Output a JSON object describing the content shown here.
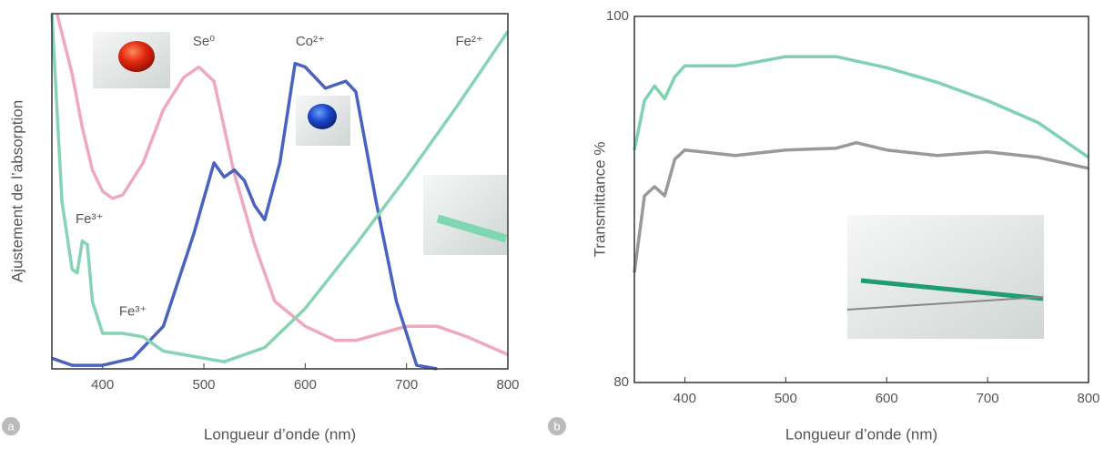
{
  "chart_data": [
    {
      "type": "line",
      "panel_label": "a",
      "xlabel": "Longueur d’onde (nm)",
      "ylabel": "Ajustement de l’absorption",
      "xlim": [
        350,
        800
      ],
      "xticks": [
        400,
        500,
        600,
        700,
        800
      ],
      "ylim": [
        0,
        100
      ],
      "series": [
        {
          "color": "#f0a8bd",
          "x": [
            355,
            370,
            380,
            390,
            400,
            410,
            420,
            440,
            460,
            480,
            495,
            510,
            530,
            550,
            570,
            600,
            630,
            650,
            700,
            730,
            760,
            800
          ],
          "values": [
            100,
            83,
            68,
            56,
            50,
            48,
            49,
            58,
            73,
            82,
            85,
            81,
            55,
            35,
            19,
            12,
            8,
            8,
            12,
            12,
            9,
            4
          ]
        },
        {
          "color": "#4a63c0",
          "x": [
            350,
            370,
            400,
            430,
            460,
            490,
            510,
            520,
            530,
            540,
            550,
            560,
            575,
            590,
            600,
            620,
            640,
            650,
            670,
            690,
            710,
            730
          ],
          "values": [
            3,
            1,
            1,
            3,
            12,
            38,
            58,
            54,
            56,
            53,
            46,
            42,
            58,
            86,
            85,
            79,
            81,
            78,
            47,
            19,
            1,
            0
          ]
        },
        {
          "color": "#86d4b4",
          "x": [
            350,
            360,
            370,
            375,
            380,
            385,
            390,
            400,
            420,
            440,
            460,
            500,
            520,
            560,
            600,
            650,
            700,
            750,
            800
          ],
          "values": [
            100,
            47,
            28,
            27,
            36,
            35,
            19,
            10,
            10,
            9,
            5,
            3,
            2,
            6,
            17,
            35,
            54,
            74,
            95
          ]
        }
      ],
      "annotations": [
        {
          "text": "Se⁰",
          "x": 500,
          "y": 92
        },
        {
          "text": "Co²⁺",
          "x": 605,
          "y": 92
        },
        {
          "text": "Fe²⁺",
          "x": 762,
          "y": 92
        },
        {
          "text": "Fe³⁺",
          "x": 387,
          "y": 42
        },
        {
          "text": "Fe³⁺",
          "x": 430,
          "y": 16
        }
      ]
    },
    {
      "type": "line",
      "panel_label": "b",
      "xlabel": "Longueur d’onde (nm)",
      "ylabel": "Transmittance %",
      "xlim": [
        350,
        800
      ],
      "xticks": [
        400,
        500,
        600,
        700,
        800
      ],
      "ylim": [
        80,
        100
      ],
      "yticks": [
        80,
        100
      ],
      "series": [
        {
          "color": "#7fd2b0",
          "x": [
            350,
            360,
            370,
            380,
            390,
            400,
            450,
            500,
            550,
            600,
            650,
            700,
            750,
            800
          ],
          "values": [
            92.7,
            95.4,
            96.2,
            95.5,
            96.7,
            97.3,
            97.3,
            97.8,
            97.8,
            97.2,
            96.4,
            95.4,
            94.2,
            92.3
          ]
        },
        {
          "color": "#999999",
          "x": [
            350,
            360,
            370,
            380,
            390,
            400,
            450,
            500,
            550,
            570,
            600,
            650,
            700,
            750,
            800
          ],
          "values": [
            86.0,
            90.2,
            90.7,
            90.2,
            92.2,
            92.7,
            92.4,
            92.7,
            92.8,
            93.1,
            92.7,
            92.4,
            92.6,
            92.3,
            91.7
          ]
        }
      ]
    }
  ]
}
